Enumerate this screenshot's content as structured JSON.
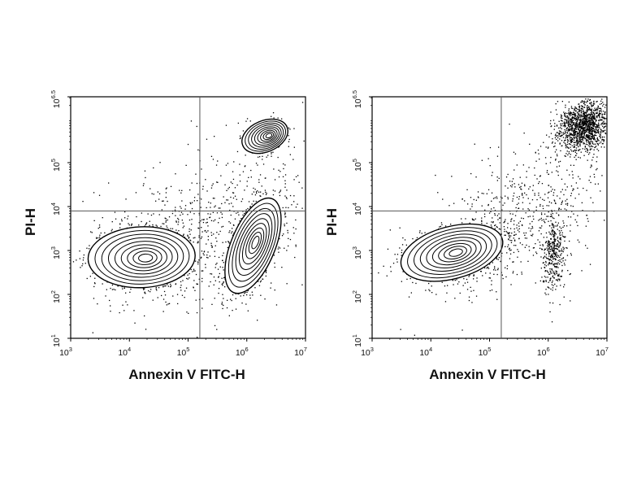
{
  "chart_data": [
    {
      "type": "scatter",
      "subtype": "flow-cytometry-dot-contour",
      "title": "",
      "xlabel": "Annexin V FITC-H",
      "ylabel": "PI-H",
      "xscale": "log",
      "yscale": "log",
      "xlim_log10": [
        3,
        7
      ],
      "ylim_log10": [
        1,
        6.5
      ],
      "x_ticks": [
        {
          "base": "10",
          "exp": "3",
          "log10": 3
        },
        {
          "base": "10",
          "exp": "4",
          "log10": 4
        },
        {
          "base": "10",
          "exp": "5",
          "log10": 5
        },
        {
          "base": "10",
          "exp": "6",
          "log10": 6
        },
        {
          "base": "10",
          "exp": "7",
          "log10": 7
        }
      ],
      "y_ticks": [
        {
          "base": "10",
          "exp": "1",
          "log10": 1
        },
        {
          "base": "10",
          "exp": "2",
          "log10": 2
        },
        {
          "base": "10",
          "exp": "3",
          "log10": 3
        },
        {
          "base": "10",
          "exp": "4",
          "log10": 4
        },
        {
          "base": "10",
          "exp": "5",
          "log10": 5
        },
        {
          "base": "10",
          "exp": "6.5",
          "log10": 6.5
        }
      ],
      "quadrant_gate_log10": {
        "x": 5.2,
        "y": 3.9
      },
      "grid": false,
      "legend": "none",
      "colors": {
        "dots": "#000000",
        "contours": "#000000",
        "gates": "#555555",
        "axes": "#000000"
      },
      "populations": [
        {
          "region": "live",
          "cx_log10": 4.2,
          "cy_log10": 2.85,
          "sx": 0.42,
          "sy": 0.32,
          "rho": 0.05,
          "contours": true,
          "density": "high"
        },
        {
          "region": "early-apoptotic",
          "cx_log10": 6.1,
          "cy_log10": 3.1,
          "sx": 0.22,
          "sy": 0.5,
          "rho": 0.55,
          "contours": true,
          "density": "high"
        },
        {
          "region": "late-apoptotic",
          "cx_log10": 6.3,
          "cy_log10": 5.6,
          "sx": 0.18,
          "sy": 0.18,
          "rho": 0.3,
          "contours": true,
          "density": "medium"
        },
        {
          "region": "diffuse",
          "cx_log10": 5.2,
          "cy_log10": 3.4,
          "sx": 0.9,
          "sy": 0.95,
          "rho": 0.4,
          "contours": false,
          "density": "low"
        }
      ]
    },
    {
      "type": "scatter",
      "subtype": "flow-cytometry-dot-contour",
      "title": "",
      "xlabel": "Annexin V FITC-H",
      "ylabel": "PI-H",
      "xscale": "log",
      "yscale": "log",
      "xlim_log10": [
        3,
        7
      ],
      "ylim_log10": [
        1,
        6.5
      ],
      "x_ticks": [
        {
          "base": "10",
          "exp": "3",
          "log10": 3
        },
        {
          "base": "10",
          "exp": "4",
          "log10": 4
        },
        {
          "base": "10",
          "exp": "5",
          "log10": 5
        },
        {
          "base": "10",
          "exp": "6",
          "log10": 6
        },
        {
          "base": "10",
          "exp": "7",
          "log10": 7
        }
      ],
      "y_ticks": [
        {
          "base": "10",
          "exp": "1",
          "log10": 1
        },
        {
          "base": "10",
          "exp": "2",
          "log10": 2
        },
        {
          "base": "10",
          "exp": "3",
          "log10": 3
        },
        {
          "base": "10",
          "exp": "4",
          "log10": 4
        },
        {
          "base": "10",
          "exp": "5",
          "log10": 5
        },
        {
          "base": "10",
          "exp": "6.5",
          "log10": 6.5
        }
      ],
      "quadrant_gate_log10": {
        "x": 5.2,
        "y": 3.9
      },
      "grid": false,
      "legend": "none",
      "colors": {
        "dots": "#000000",
        "contours": "#000000",
        "gates": "#555555",
        "axes": "#000000"
      },
      "populations": [
        {
          "region": "live",
          "cx_log10": 4.35,
          "cy_log10": 2.95,
          "sx": 0.4,
          "sy": 0.3,
          "rho": 0.35,
          "contours": true,
          "density": "high"
        },
        {
          "region": "early-apoptotic",
          "cx_log10": 6.1,
          "cy_log10": 2.95,
          "sx": 0.1,
          "sy": 0.45,
          "rho": 0.1,
          "contours": false,
          "density": "medium"
        },
        {
          "region": "late-apoptotic",
          "cx_log10": 6.6,
          "cy_log10": 5.85,
          "sx": 0.22,
          "sy": 0.28,
          "rho": 0.1,
          "contours": false,
          "density": "high"
        },
        {
          "region": "diffuse",
          "cx_log10": 5.4,
          "cy_log10": 3.7,
          "sx": 0.75,
          "sy": 0.9,
          "rho": 0.6,
          "contours": false,
          "density": "low"
        }
      ]
    }
  ]
}
